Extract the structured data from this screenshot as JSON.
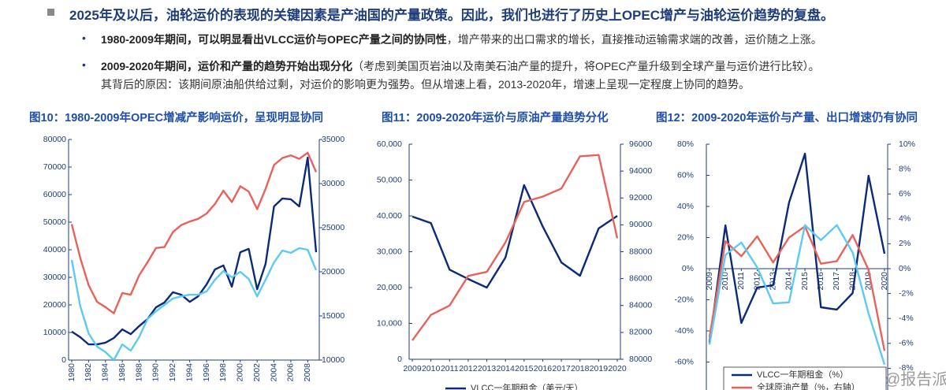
{
  "header": {
    "text": "2025年及以后，油轮运价的表现的关键因素是产油国的产量政策。因此，我们也进行了历史上OPEC增产与油轮运价趋势的复盘。"
  },
  "bullets": [
    {
      "bold": "1980-2009年期间，可以明显看出VLCC运价与OPEC产量之间的协同性",
      "text": "，增产带来的出口需求的增长，直接推动运输需求端的改善，运价随之上涨。"
    },
    {
      "bold": "2009-2020年期间，运价和产量的趋势开始出现分化",
      "text": "（考虑到美国页岩油以及南美石油产量的提升，将OPEC产量升级到全球产量与运价进行比较）。",
      "continuation": "其背后的原因：该期间原油船供给过剩，对运价的影响更为强势。但从增速上看，2013-2020年，增速上呈现一定程度上协同的趋势。"
    }
  ],
  "watermark": "@报告派",
  "chart_data": [
    {
      "type": "line",
      "title": "图10：1980-2009年OPEC增减产影响运价，呈现明显协同",
      "x": [
        1980,
        1981,
        1982,
        1983,
        1984,
        1985,
        1986,
        1987,
        1988,
        1989,
        1990,
        1991,
        1992,
        1993,
        1994,
        1995,
        1996,
        1997,
        1998,
        1999,
        2000,
        2001,
        2002,
        2003,
        2004,
        2005,
        2006,
        2007,
        2008,
        2009
      ],
      "xlim": [
        1980,
        2009
      ],
      "xticks": [
        1980,
        1982,
        1984,
        1986,
        1988,
        1990,
        1992,
        1994,
        1996,
        1998,
        2000,
        2002,
        2004,
        2006,
        2008
      ],
      "ylim": [
        0,
        80000
      ],
      "yticks": [
        0,
        10000,
        20000,
        30000,
        40000,
        50000,
        60000,
        70000,
        80000
      ],
      "y2lim": [
        10000,
        35000
      ],
      "y2ticks": [
        10000,
        15000,
        20000,
        25000,
        30000,
        35000
      ],
      "series": [
        {
          "color": "#0b2a7a",
          "values": [
            10300,
            8300,
            5700,
            5700,
            6300,
            8000,
            11100,
            9400,
            12300,
            14900,
            19100,
            20900,
            24600,
            23700,
            21100,
            23100,
            27400,
            32900,
            34300,
            26600,
            39100,
            40300,
            25700,
            34900,
            55700,
            58600,
            58300,
            55700,
            73400,
            39100
          ]
        },
        {
          "color": "#5ccaf2",
          "values": [
            36300,
            19700,
            9700,
            4900,
            2900,
            0,
            5700,
            3400,
            8300,
            14900,
            17700,
            20000,
            22300,
            23100,
            23700,
            23700,
            24900,
            29100,
            32300,
            30000,
            32000,
            29400,
            23100,
            29100,
            35400,
            39700,
            38900,
            40600,
            40000,
            32600
          ]
        },
        {
          "color": "#e8625c",
          "axis": "y2",
          "values": [
            25400,
            21600,
            18500,
            16600,
            16000,
            15300,
            17600,
            17400,
            19600,
            21100,
            22700,
            22800,
            24500,
            25300,
            25700,
            26000,
            26600,
            27700,
            29200,
            27900,
            29700,
            29100,
            27100,
            29400,
            32100,
            32900,
            33200,
            32800,
            33500,
            31300
          ]
        }
      ]
    },
    {
      "type": "line",
      "title": "图11：2009-2020年运价与原油产量趋势分化",
      "x": [
        2009,
        2010,
        2011,
        2012,
        2013,
        2014,
        2015,
        2016,
        2017,
        2018,
        2019,
        2020
      ],
      "xlim": [
        2009,
        2020
      ],
      "xticks": [
        2009,
        2010,
        2011,
        2012,
        2013,
        2014,
        2015,
        2016,
        2017,
        2018,
        2019,
        2020
      ],
      "ylim": [
        0,
        60000
      ],
      "yticks": [
        0,
        {
          "value": 10000,
          "label": "10,000"
        },
        {
          "value": 20000,
          "label": "20,000"
        },
        {
          "value": 30000,
          "label": "30,000"
        },
        {
          "value": 40000,
          "label": "40,000"
        },
        {
          "value": 50000,
          "label": "50,000"
        },
        {
          "value": 60000,
          "label": "60,000"
        }
      ],
      "y2lim": [
        80000,
        96000
      ],
      "y2ticks": [
        80000,
        82000,
        84000,
        86000,
        88000,
        90000,
        92000,
        94000,
        96000
      ],
      "legend": "bottom",
      "series": [
        {
          "name": "VLCC一年期租金（美元/天）",
          "color": "#0b2a7a",
          "values": [
            39800,
            38000,
            25000,
            22400,
            20000,
            28400,
            48600,
            37000,
            27000,
            23300,
            36500,
            40000
          ]
        },
        {
          "color": "#e8625c",
          "axis": "y2",
          "values": [
            81400,
            83300,
            84000,
            86200,
            86500,
            88700,
            91700,
            92100,
            92700,
            95100,
            95200,
            89000
          ]
        }
      ]
    },
    {
      "type": "line",
      "title": "图12：2009-2020年运价与产量、出口增速仍有协同",
      "x": [
        2009,
        2010,
        2011,
        2012,
        2013,
        2014,
        2015,
        2016,
        2017,
        2018,
        2019,
        2020
      ],
      "xlim": [
        2009,
        2020
      ],
      "xticks": [
        2009,
        2010,
        2011,
        2012,
        2013,
        2014,
        2015,
        2016,
        2017,
        2018,
        2019,
        2020
      ],
      "ylim": [
        -80,
        80
      ],
      "yticks": [
        {
          "value": -60,
          "label": "-60%"
        },
        {
          "value": -40,
          "label": "-40%"
        },
        {
          "value": -20,
          "label": "-20%"
        },
        {
          "value": 0,
          "label": "0%"
        },
        {
          "value": 20,
          "label": "20%"
        },
        {
          "value": 40,
          "label": "40%"
        },
        {
          "value": 60,
          "label": "60%"
        },
        {
          "value": 80,
          "label": "80%"
        }
      ],
      "y2lim": [
        -10,
        10
      ],
      "y2ticks": [
        {
          "value": -8,
          "label": "-8%"
        },
        {
          "value": -6,
          "label": "-6%"
        },
        {
          "value": -4,
          "label": "-4%"
        },
        {
          "value": -2,
          "label": "-2%"
        },
        {
          "value": 0,
          "label": "0%"
        },
        {
          "value": 2,
          "label": "2%"
        },
        {
          "value": 4,
          "label": "4%"
        },
        {
          "value": 6,
          "label": "6%"
        },
        {
          "value": 8,
          "label": "8%"
        },
        {
          "value": 10,
          "label": "10%"
        }
      ],
      "legend": "bottom-box",
      "series": [
        {
          "name": "VLCC一年期租金（%）",
          "color": "#0b2a7a",
          "values": [
            -47.6,
            27.8,
            -34.9,
            -12.2,
            -10.6,
            42.5,
            73.9,
            -24.8,
            -26.3,
            -15.7,
            59.7,
            9.6
          ]
        },
        {
          "name": "全球原油产量（%，右轴）",
          "color": "#e8625c",
          "axis": "y2",
          "values": [
            -5.5,
            2.2,
            1.0,
            2.6,
            0.5,
            2.5,
            3.4,
            0.4,
            0.6,
            2.7,
            -0.1,
            -6.6
          ]
        },
        {
          "color": "#5ccaf2",
          "axis": "y2",
          "values": [
            -6.1,
            1.1,
            2.1,
            0.1,
            -2.8,
            -2.7,
            3.5,
            2.3,
            3.5,
            1.3,
            -3.6,
            -7.7
          ]
        }
      ]
    }
  ]
}
